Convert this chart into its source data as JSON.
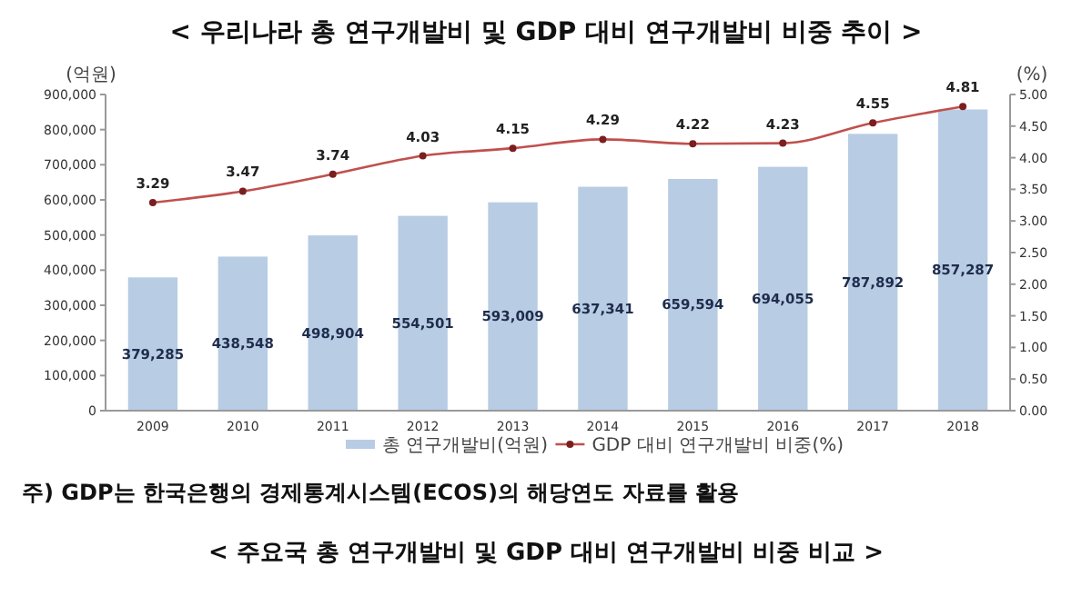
{
  "chart_data": {
    "type": "bar",
    "title": "< 우리나라 총 연구개발비 및 GDP 대비 연구개발비 비중 추이 >",
    "ylabel": "(억원)",
    "y2label": "(%)",
    "categories": [
      "2009",
      "2010",
      "2011",
      "2012",
      "2013",
      "2014",
      "2015",
      "2016",
      "2017",
      "2018"
    ],
    "series": [
      {
        "name": "총 연구개발비(억원)",
        "color": "#b8cce4",
        "values": [
          379285,
          438548,
          498904,
          554501,
          593009,
          637341,
          659594,
          694055,
          787892,
          857287
        ],
        "value_labels": [
          "379,285",
          "438,548",
          "498,904",
          "554,501",
          "593,009",
          "637,341",
          "659,594",
          "694,055",
          "787,892",
          "857,287"
        ]
      },
      {
        "name": "GDP 대비 연구개발비 비중(%)",
        "type": "line",
        "axis": "y2",
        "color": "#c0504d",
        "marker": "circle",
        "values": [
          3.29,
          3.47,
          3.74,
          4.03,
          4.15,
          4.29,
          4.22,
          4.23,
          4.55,
          4.81
        ]
      }
    ],
    "ylim": [
      0,
      900000
    ],
    "yticks": [
      {
        "value": 0,
        "label": "0"
      },
      {
        "value": 100000,
        "label": "100,000"
      },
      {
        "value": 200000,
        "label": "200,000"
      },
      {
        "value": 300000,
        "label": "300,000"
      },
      {
        "value": 400000,
        "label": "400,000"
      },
      {
        "value": 500000,
        "label": "500,000"
      },
      {
        "value": 600000,
        "label": "600,000"
      },
      {
        "value": 700000,
        "label": "700,000"
      },
      {
        "value": 800000,
        "label": "800,000"
      },
      {
        "value": 900000,
        "label": "900,000"
      }
    ],
    "y2lim": [
      0,
      5
    ],
    "y2ticks": [
      {
        "value": 0,
        "label": "0.00"
      },
      {
        "value": 0.5,
        "label": "0.50"
      },
      {
        "value": 1,
        "label": "1.00"
      },
      {
        "value": 1.5,
        "label": "1.50"
      },
      {
        "value": 2,
        "label": "2.00"
      },
      {
        "value": 2.5,
        "label": "2.50"
      },
      {
        "value": 3,
        "label": "3.00"
      },
      {
        "value": 3.5,
        "label": "3.50"
      },
      {
        "value": 4,
        "label": "4.00"
      },
      {
        "value": 4.5,
        "label": "4.50"
      },
      {
        "value": 5,
        "label": "5.00"
      }
    ],
    "data_labels": true,
    "legend": "bottom",
    "grid": false,
    "annotations": [
      "주) GDP는 한국은행의 경제통계시스템(ECOS)의 해당연도 자료를 활용",
      "< 주요국 총 연구개발비 및 GDP 대비 연구개발비 비중 비교 >"
    ]
  }
}
